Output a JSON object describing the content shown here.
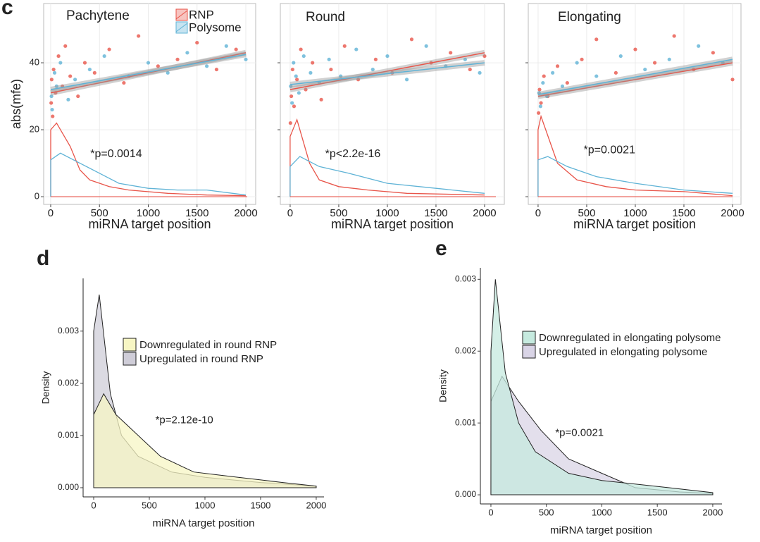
{
  "chart_data": [
    {
      "type": "scatter",
      "panel_label": "c",
      "title": "Pachytene",
      "xlabel": "miRNA target position",
      "ylabel": "abs(mfe)",
      "annotation": "*p=0.0014",
      "xlim": [
        -72,
        2101
      ],
      "ylim": [
        -2.3,
        57.7
      ],
      "xticks": [
        0,
        500,
        1000,
        1500,
        2000
      ],
      "yticks": [
        0,
        20,
        40
      ],
      "show_ytick_labels": true,
      "grid": true,
      "legend_position": "top-right",
      "series": [
        {
          "name": "RNP",
          "color": "#e8554a",
          "x": [
            5,
            10,
            20,
            30,
            50,
            80,
            120,
            150,
            200,
            280,
            350,
            450,
            600,
            750,
            900,
            1100,
            1300,
            1500,
            1700,
            1900
          ],
          "y": [
            28,
            35,
            24,
            38,
            31,
            42,
            33,
            45,
            36,
            30,
            40,
            37,
            44,
            34,
            48,
            39,
            41,
            46,
            38,
            44
          ]
        },
        {
          "name": "Polysome",
          "color": "#5fb3d6",
          "x": [
            8,
            15,
            40,
            60,
            100,
            180,
            250,
            400,
            550,
            800,
            1000,
            1200,
            1400,
            1600,
            1800,
            2000
          ],
          "y": [
            30,
            26,
            37,
            33,
            40,
            29,
            35,
            38,
            42,
            36,
            40,
            37,
            43,
            39,
            45,
            41
          ]
        }
      ],
      "fits": [
        {
          "x": [
            0,
            2000
          ],
          "y": [
            31,
            43
          ]
        },
        {
          "x": [
            0,
            2000
          ],
          "y": [
            32,
            42.5
          ]
        }
      ],
      "densities": [
        {
          "x": [
            0,
            0,
            60,
            200,
            300,
            400,
            600,
            800,
            1200,
            1600,
            2000
          ],
          "y": [
            0,
            20,
            22,
            15,
            8,
            5,
            3,
            2,
            1,
            0.5,
            0.3
          ]
        },
        {
          "x": [
            0,
            0,
            100,
            300,
            500,
            700,
            1000,
            1300,
            1600,
            2000
          ],
          "y": [
            0,
            11,
            13,
            10,
            7,
            4,
            2.5,
            2,
            2,
            0.5
          ]
        }
      ]
    },
    {
      "type": "scatter",
      "title": "Round",
      "xlabel": "miRNA target position",
      "annotation": "*p<2.2e-16",
      "xlim": [
        -101,
        2203
      ],
      "ylim": [
        -2.3,
        57.7
      ],
      "xticks": [
        0,
        500,
        1000,
        1500,
        2000
      ],
      "yticks": [
        0,
        20,
        40
      ],
      "show_ytick_labels": false,
      "grid": true,
      "series": [
        {
          "color": "#e8554a",
          "x": [
            3,
            12,
            25,
            40,
            70,
            110,
            160,
            230,
            320,
            420,
            560,
            700,
            880,
            1050,
            1250,
            1450,
            1650,
            1850,
            2000
          ],
          "y": [
            22,
            30,
            38,
            27,
            35,
            44,
            32,
            40,
            29,
            38,
            45,
            35,
            41,
            37,
            47,
            40,
            43,
            38,
            42
          ]
        },
        {
          "color": "#5fb3d6",
          "x": [
            6,
            20,
            35,
            60,
            90,
            140,
            210,
            300,
            400,
            520,
            680,
            850,
            1000,
            1200,
            1400,
            1600,
            1800,
            1950
          ],
          "y": [
            33,
            28,
            40,
            36,
            31,
            42,
            37,
            34,
            41,
            36,
            44,
            38,
            42,
            35,
            45,
            39,
            41,
            37
          ]
        }
      ],
      "fits": [
        {
          "x": [
            0,
            2000
          ],
          "y": [
            32,
            43
          ]
        },
        {
          "x": [
            0,
            2000
          ],
          "y": [
            33.5,
            40
          ]
        }
      ],
      "densities": [
        {
          "x": [
            0,
            0,
            70,
            200,
            300,
            500,
            800,
            1200,
            2000
          ],
          "y": [
            0,
            18,
            23,
            10,
            5,
            3,
            2,
            1,
            0.5
          ]
        },
        {
          "x": [
            0,
            0,
            100,
            300,
            600,
            1000,
            1500,
            2000
          ],
          "y": [
            0,
            9,
            12,
            9,
            7,
            4,
            2.5,
            1
          ]
        }
      ]
    },
    {
      "type": "scatter",
      "title": "Elongating",
      "xlabel": "miRNA target position",
      "annotation": "*p=0.0021",
      "xlim": [
        -101,
        2087
      ],
      "ylim": [
        -2.3,
        57.7
      ],
      "xticks": [
        0,
        500,
        1000,
        1500,
        2000
      ],
      "yticks": [
        0,
        20,
        40
      ],
      "show_ytick_labels": false,
      "grid": true,
      "series": [
        {
          "color": "#e8554a",
          "x": [
            5,
            15,
            30,
            60,
            100,
            200,
            300,
            450,
            600,
            800,
            1000,
            1200,
            1400,
            1600,
            1800,
            2000
          ],
          "y": [
            25,
            32,
            28,
            36,
            30,
            39,
            34,
            41,
            47,
            37,
            44,
            40,
            48,
            38,
            43,
            35
          ]
        },
        {
          "color": "#5fb3d6",
          "x": [
            10,
            25,
            50,
            90,
            150,
            250,
            400,
            600,
            850,
            1100,
            1350,
            1650,
            1900
          ],
          "y": [
            31,
            27,
            34,
            30,
            37,
            33,
            40,
            36,
            42,
            38,
            41,
            45,
            40
          ]
        }
      ],
      "fits": [
        {
          "x": [
            0,
            2000
          ],
          "y": [
            30,
            40
          ]
        },
        {
          "x": [
            0,
            2000
          ],
          "y": [
            30.5,
            41
          ]
        }
      ],
      "densities": [
        {
          "x": [
            0,
            0,
            30,
            200,
            400,
            700,
            1000,
            1500,
            2000
          ],
          "y": [
            0,
            20,
            24,
            10,
            5,
            3,
            2,
            1.5,
            0.3
          ]
        },
        {
          "x": [
            0,
            0,
            100,
            300,
            600,
            1000,
            1500,
            2000
          ],
          "y": [
            0,
            11,
            12,
            9,
            6,
            4,
            2,
            1
          ]
        }
      ]
    },
    {
      "type": "area",
      "panel_label": "d",
      "xlabel": "miRNA target position",
      "ylabel": "Density",
      "annotation": "*p=2.12e-10",
      "xlim": [
        -95,
        2070
      ],
      "ylim": [
        -0.000176,
        0.00401
      ],
      "xticks": [
        0,
        500,
        1000,
        1500,
        2000
      ],
      "yticks": [
        {
          "value": 0,
          "label": "0.000"
        },
        0.001,
        0.002,
        0.003
      ],
      "legend_position": "upper-middle",
      "series": [
        {
          "name": "Downregulated in round RNP",
          "color": "#f7f6c4",
          "x": [
            0,
            90,
            200,
            400,
            600,
            900,
            1100,
            1300,
            1700,
            2000
          ],
          "values": [
            0.0014,
            0.0018,
            0.0014,
            0.001,
            0.0006,
            0.0003,
            0.00025,
            0.0002,
            0.0001,
            3e-05
          ]
        },
        {
          "name": "Upregulated in round RNP",
          "color": "#cfcdd8",
          "x": [
            0,
            50,
            150,
            250,
            400,
            700,
            1000,
            1500,
            2000
          ],
          "values": [
            0.003,
            0.0037,
            0.0018,
            0.001,
            0.0006,
            0.0003,
            0.0002,
            0.0001,
            3e-05
          ]
        }
      ]
    },
    {
      "type": "area",
      "panel_label": "e",
      "xlabel": "miRNA target position",
      "ylabel": "Density",
      "annotation": "*p=0.0021",
      "xlim": [
        -95,
        2083
      ],
      "ylim": [
        -0.000127,
        0.00316
      ],
      "xticks": [
        0,
        500,
        1000,
        1500,
        2000
      ],
      "yticks": [
        {
          "value": 0,
          "label": "0.000"
        },
        0.001,
        0.002,
        0.003
      ],
      "legend_position": "upper-middle",
      "series": [
        {
          "name": "Downregulated in elongating polysome",
          "color": "#c6eadf",
          "x": [
            0,
            40,
            130,
            250,
            400,
            700,
            1000,
            1300,
            1600,
            2000
          ],
          "values": [
            0.002,
            0.003,
            0.0017,
            0.001,
            0.0006,
            0.0003,
            0.0002,
            0.00015,
            0.0001,
            3e-05
          ]
        },
        {
          "name": "Upregulated in elongating polysome",
          "color": "#d9d4e6",
          "x": [
            0,
            100,
            250,
            450,
            700,
            1000,
            1300,
            1700,
            2000
          ],
          "values": [
            0.0013,
            0.00165,
            0.0013,
            0.0009,
            0.0005,
            0.0003,
            0.0001,
            4e-05,
            2e-05
          ]
        }
      ]
    }
  ]
}
